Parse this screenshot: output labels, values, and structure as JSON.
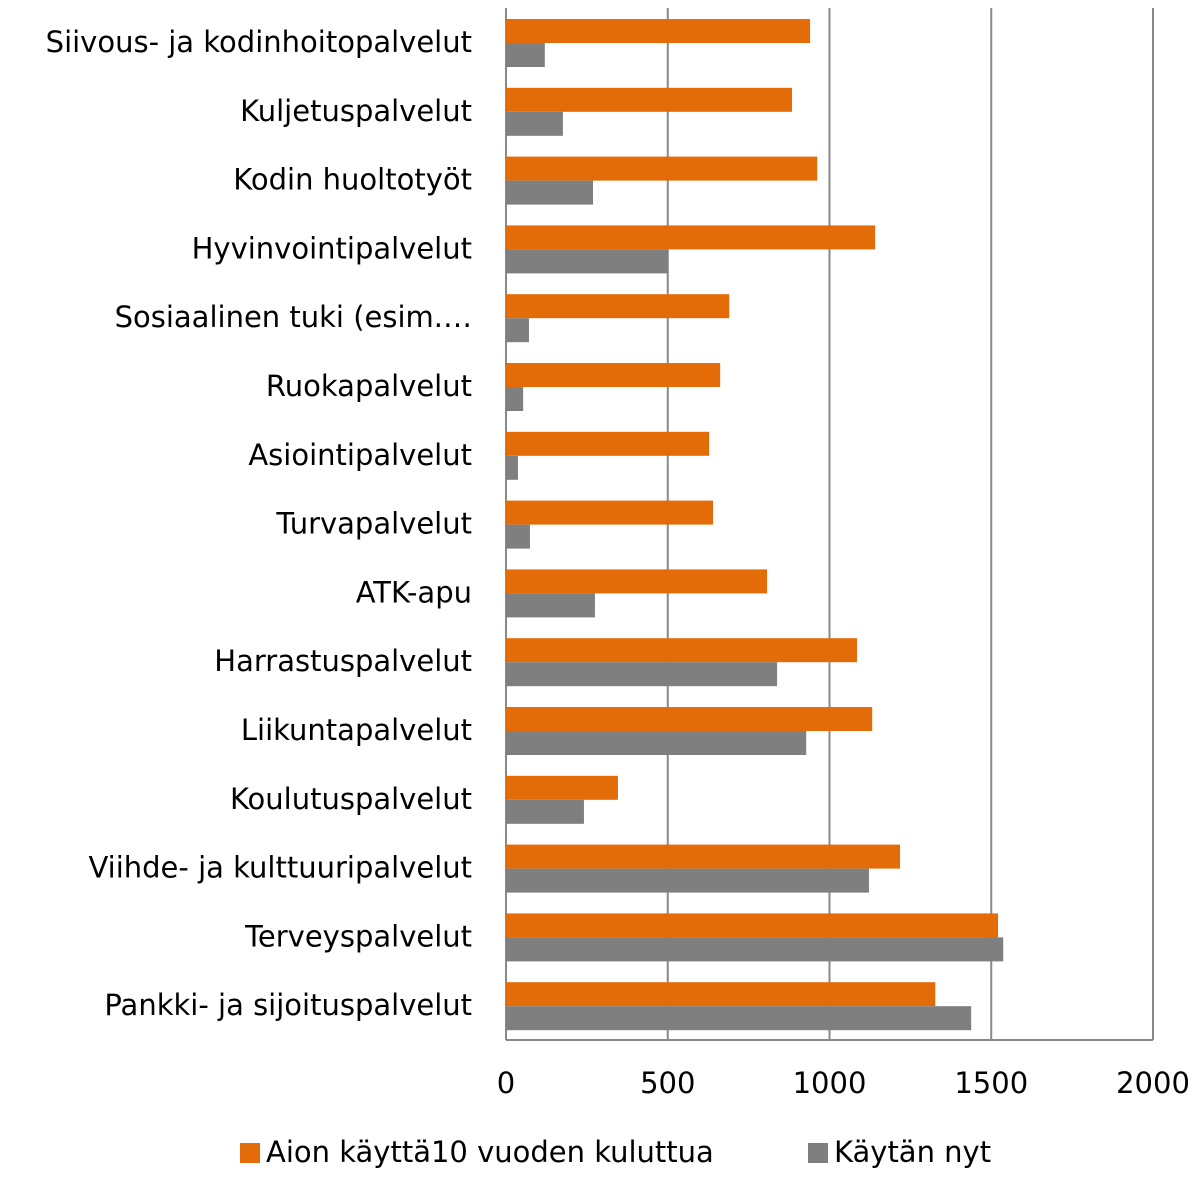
{
  "chart_data": {
    "type": "hbar",
    "categories": [
      "Siivous- ja kodinhoitopalvelut",
      "Kuljetuspalvelut",
      "Kodin huoltotyöt",
      "Hyvinvointipalvelut",
      "Sosiaalinen tuki (esim.…",
      "Ruokapalvelut",
      "Asiointipalvelut",
      "Turvapalvelut",
      "ATK-apu",
      "Harrastuspalvelut",
      "Liikuntapalvelut",
      "Koulutuspalvelut",
      "Viihde- ja kulttuuripalvelut",
      "Terveyspalvelut",
      "Pankki- ja sijoituspalvelut"
    ],
    "series": [
      {
        "name": "Aion käyttä10 vuoden kuluttua",
        "color": "#e36c09",
        "values": [
          940,
          884,
          962,
          1141,
          690,
          662,
          628,
          640,
          807,
          1085,
          1132,
          346,
          1218,
          1521,
          1327
        ]
      },
      {
        "name": "Käytän nyt",
        "color": "#7f7f7f",
        "values": [
          120,
          176,
          269,
          501,
          71,
          53,
          37,
          74,
          275,
          838,
          928,
          241,
          1122,
          1537,
          1438
        ]
      }
    ],
    "xlim": [
      0,
      2000
    ],
    "xticks": [
      0,
      500,
      1000,
      1500,
      2000
    ],
    "grid": true
  }
}
